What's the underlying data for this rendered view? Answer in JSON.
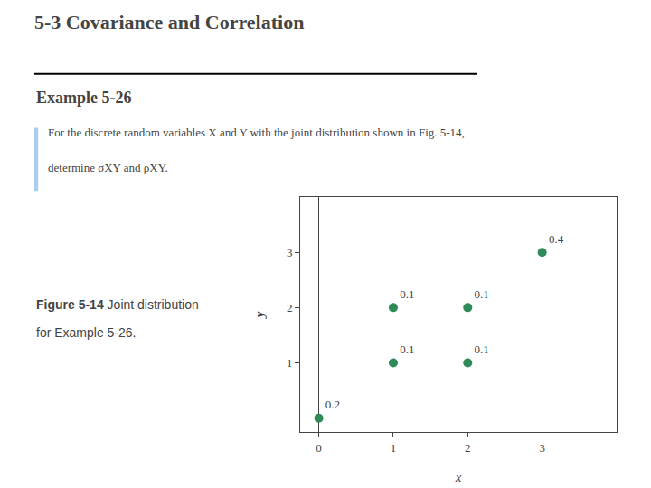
{
  "chart_data": {
    "type": "scatter",
    "title": "5-3 Covariance and Correlation",
    "subtitle": "Example 5-26",
    "annotations": [
      "For the discrete random variables X and Y with the joint distribution shown in Fig. 5-14,",
      "determine σXY and ρXY.",
      "Figure 5-14",
      "Joint distribution",
      "for Example 5-26."
    ],
    "x": [
      0,
      1,
      2,
      1,
      2,
      3
    ],
    "values": [
      0,
      1,
      1,
      2,
      2,
      3
    ],
    "probabilities": [
      0.2,
      0.1,
      0.1,
      0.1,
      0.1,
      0.4
    ],
    "color": "#2e8b57",
    "xlim": [
      -0.25,
      4.0
    ],
    "ylim": [
      -0.25,
      4.0
    ],
    "xticks": [
      0,
      1,
      2,
      3
    ],
    "yticks": [
      1,
      2,
      3
    ],
    "xlabel": "x",
    "ylabel": "y",
    "grid": false
  }
}
